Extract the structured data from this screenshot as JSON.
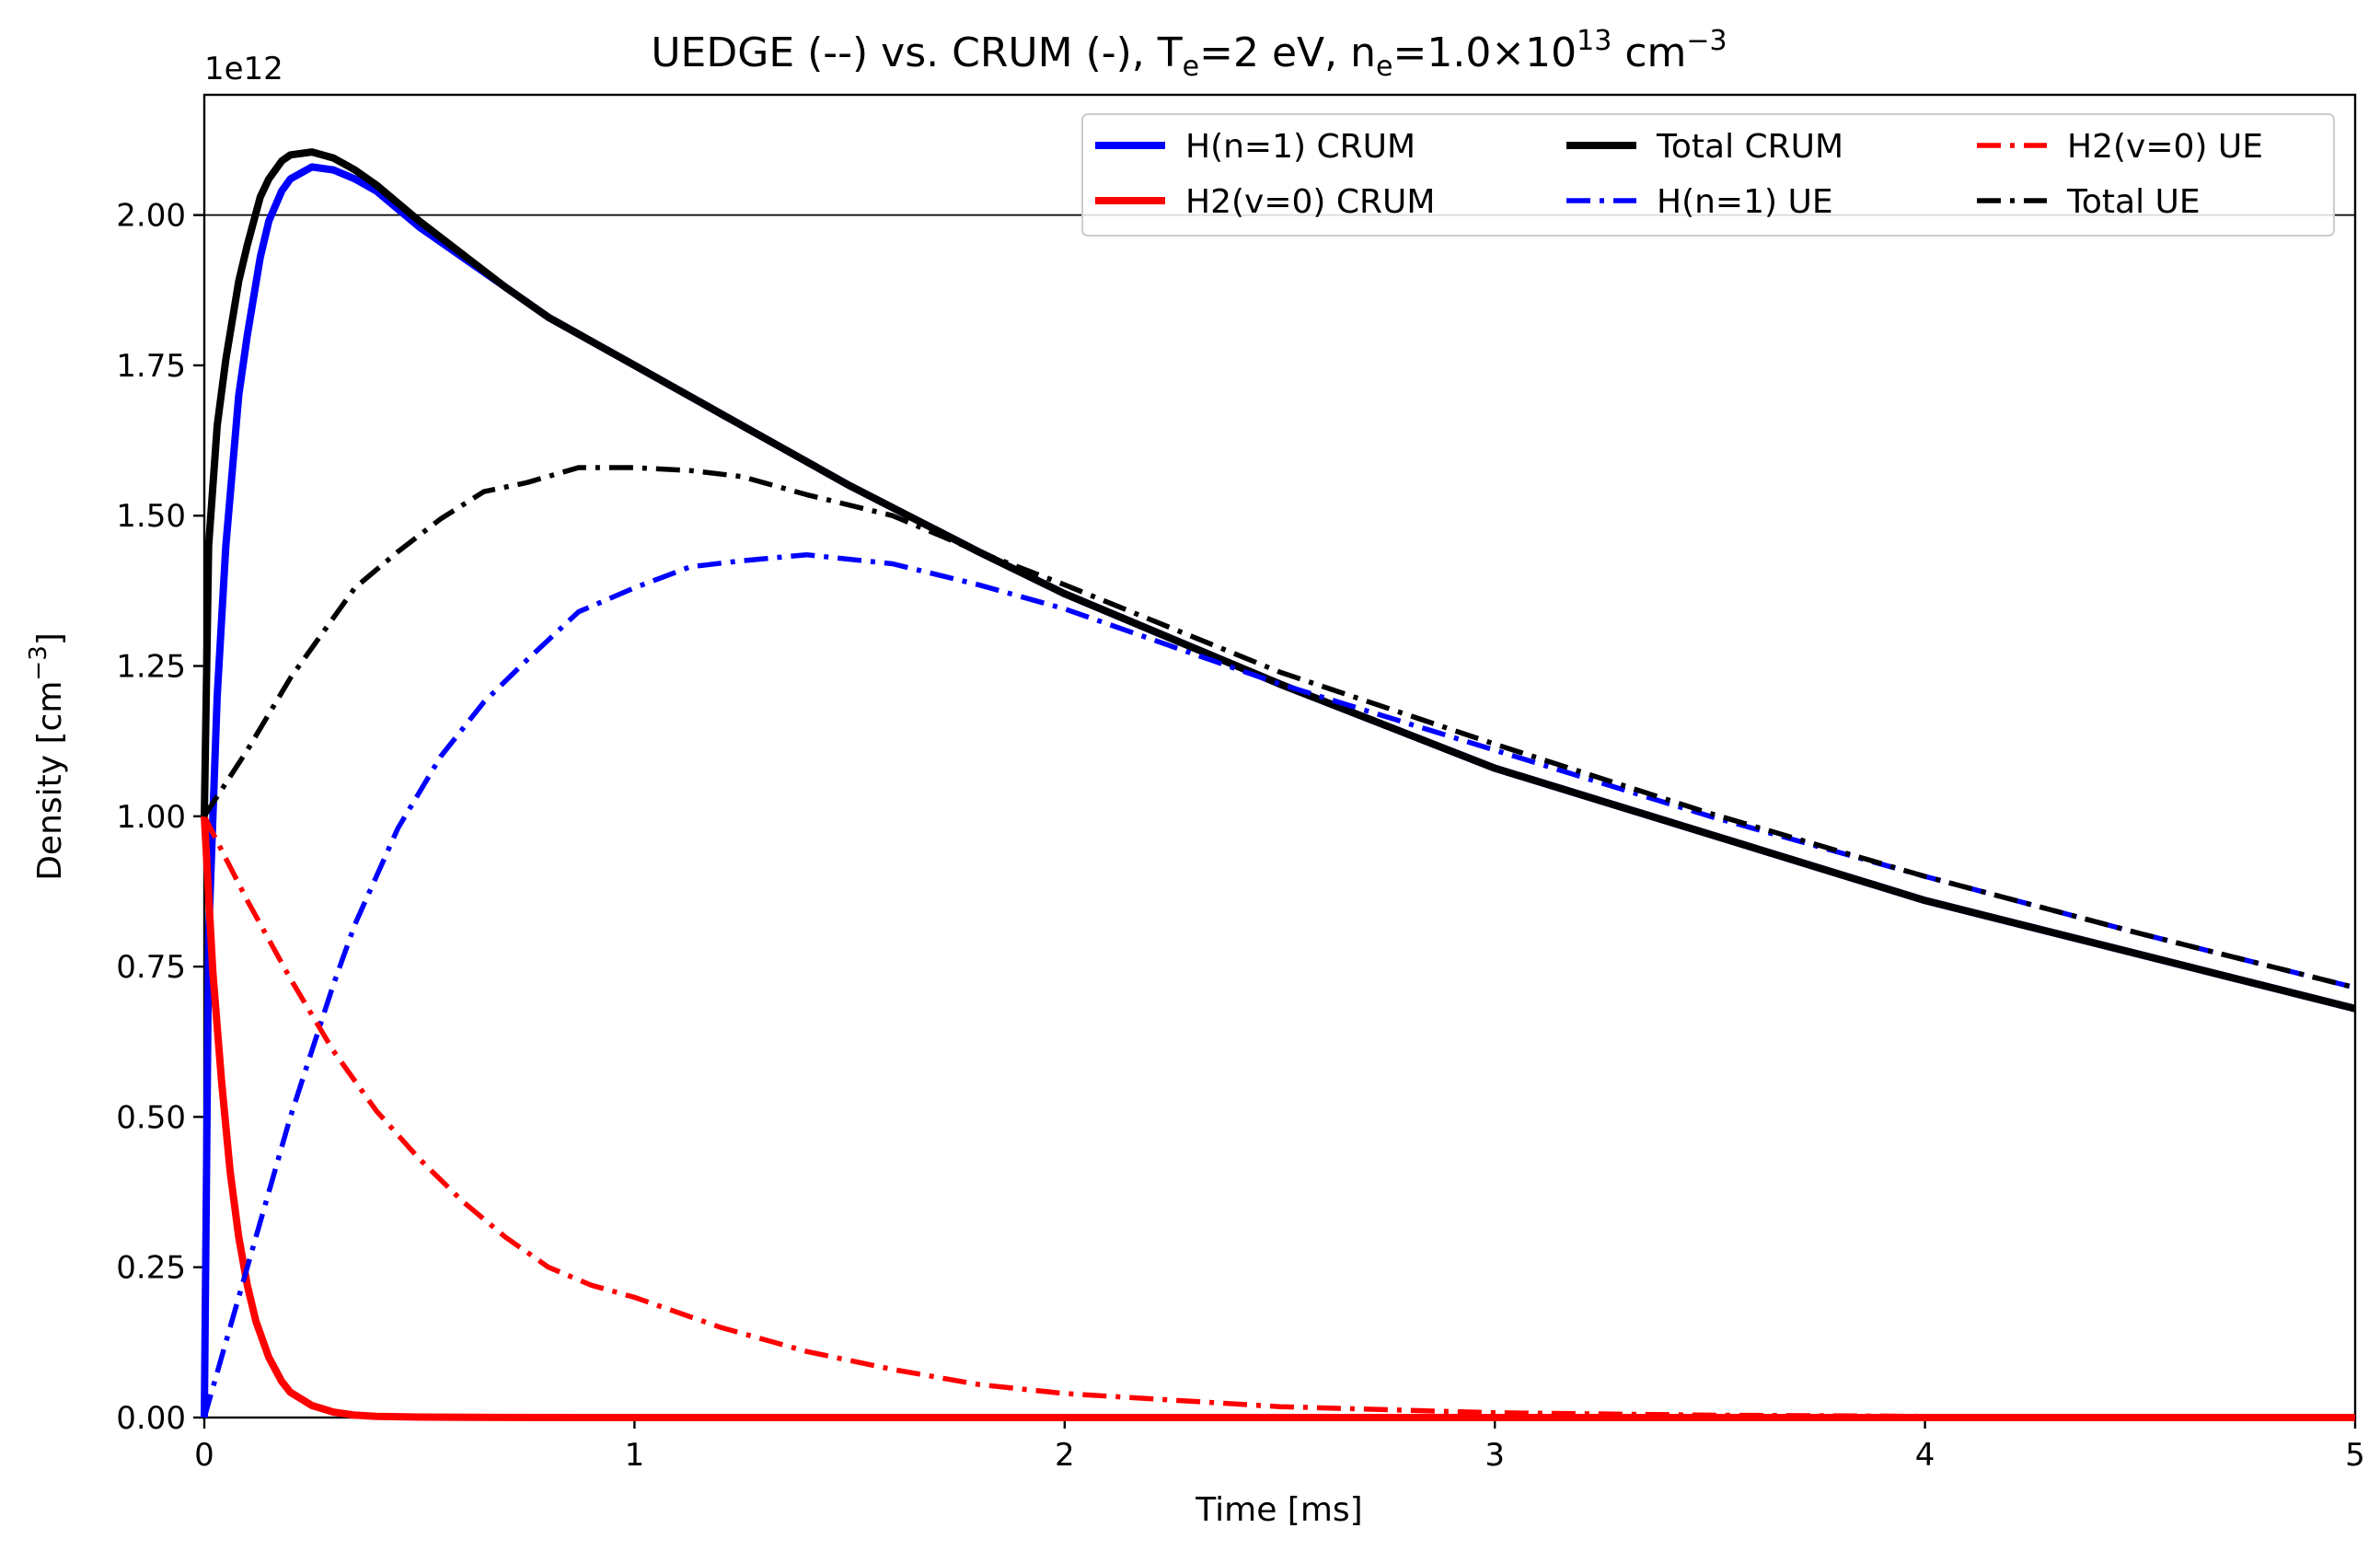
{
  "chart_data": {
    "type": "line",
    "title": {
      "prefix": "UEDGE (--) vs. CRUM (-),  T",
      "te_sub": "e",
      "mid": "=2 eV, n",
      "ne_sub": "e",
      "value": "=1.0×10",
      "exp": "13",
      "unit": " cm",
      "unit_exp": "−3"
    },
    "xlabel": "Time [ms]",
    "ylabel": {
      "text": "Density [cm",
      "exp": "−3",
      "close": "]"
    },
    "y_offset_text": "1e12",
    "xlim": [
      0,
      5
    ],
    "ylim": [
      0,
      2.2
    ],
    "x_ticks": [
      0,
      1,
      2,
      3,
      4,
      5
    ],
    "x_tick_labels": [
      "0",
      "1",
      "2",
      "3",
      "4",
      "5"
    ],
    "y_ticks": [
      0,
      0.25,
      0.5,
      0.75,
      1.0,
      1.25,
      1.5,
      1.75,
      2.0
    ],
    "y_tick_labels": [
      "0.00",
      "0.25",
      "0.50",
      "0.75",
      "1.00",
      "1.25",
      "1.50",
      "1.75",
      "2.00"
    ],
    "reference_line_y": 2.0,
    "grid": false,
    "legend": {
      "placement": "top-right",
      "columns": 3
    },
    "series": [
      {
        "name": "H(n=1) CRUM",
        "color": "#0000ff",
        "style": "solid",
        "x": [
          0,
          0.01,
          0.03,
          0.05,
          0.08,
          0.1,
          0.13,
          0.15,
          0.18,
          0.2,
          0.25,
          0.3,
          0.35,
          0.4,
          0.5,
          0.6,
          0.7,
          0.8,
          1.0,
          1.2,
          1.5,
          1.8,
          2.0,
          2.5,
          3.0,
          3.5,
          4.0,
          4.5,
          5.0
        ],
        "y": [
          0,
          0.8,
          1.2,
          1.45,
          1.7,
          1.8,
          1.93,
          1.99,
          2.04,
          2.06,
          2.08,
          2.075,
          2.06,
          2.04,
          1.98,
          1.93,
          1.88,
          1.83,
          1.75,
          1.67,
          1.55,
          1.44,
          1.37,
          1.22,
          1.08,
          0.97,
          0.86,
          0.77,
          0.68
        ]
      },
      {
        "name": "H2(v=0) CRUM",
        "color": "#ff0000",
        "style": "solid",
        "x": [
          0,
          0.02,
          0.04,
          0.06,
          0.08,
          0.1,
          0.12,
          0.15,
          0.18,
          0.2,
          0.25,
          0.3,
          0.35,
          0.4,
          0.5,
          0.7,
          1.0,
          2.0,
          3.0,
          4.0,
          5.0
        ],
        "y": [
          1.0,
          0.74,
          0.56,
          0.41,
          0.3,
          0.22,
          0.16,
          0.1,
          0.06,
          0.042,
          0.02,
          0.009,
          0.004,
          0.002,
          0.0007,
          0.0001,
          0,
          0,
          0,
          0,
          0
        ]
      },
      {
        "name": "Total CRUM",
        "color": "#000000",
        "style": "solid",
        "x": [
          0,
          0.01,
          0.03,
          0.05,
          0.08,
          0.1,
          0.13,
          0.15,
          0.18,
          0.2,
          0.25,
          0.3,
          0.35,
          0.4,
          0.5,
          0.6,
          0.7,
          0.8,
          1.0,
          1.2,
          1.5,
          1.8,
          2.0,
          2.5,
          3.0,
          3.5,
          4.0,
          4.5,
          5.0
        ],
        "y": [
          1.0,
          1.45,
          1.65,
          1.76,
          1.89,
          1.95,
          2.03,
          2.06,
          2.09,
          2.1,
          2.105,
          2.095,
          2.075,
          2.05,
          1.99,
          1.935,
          1.88,
          1.83,
          1.75,
          1.67,
          1.55,
          1.44,
          1.37,
          1.22,
          1.08,
          0.97,
          0.86,
          0.77,
          0.68
        ]
      },
      {
        "name": "H(n=1) UE",
        "color": "#0000ff",
        "style": "dashdot",
        "x": [
          0,
          0.1,
          0.2,
          0.3,
          0.35,
          0.45,
          0.55,
          0.65,
          0.75,
          0.87,
          1.0,
          1.13,
          1.25,
          1.4,
          1.6,
          1.8,
          2.0,
          2.5,
          3.0,
          3.5,
          4.0,
          4.5,
          5.0
        ],
        "y": [
          0,
          0.25,
          0.5,
          0.72,
          0.82,
          0.98,
          1.1,
          1.19,
          1.26,
          1.34,
          1.38,
          1.415,
          1.425,
          1.435,
          1.42,
          1.385,
          1.345,
          1.22,
          1.11,
          1.0,
          0.9,
          0.805,
          0.715
        ]
      },
      {
        "name": "H2(v=0) UE",
        "color": "#ff0000",
        "style": "dashdot",
        "x": [
          0,
          0.1,
          0.2,
          0.3,
          0.4,
          0.5,
          0.6,
          0.7,
          0.8,
          0.9,
          1.0,
          1.2,
          1.4,
          1.6,
          1.8,
          2.0,
          2.5,
          3.0,
          3.5,
          4.0,
          4.5,
          5.0
        ],
        "y": [
          1.0,
          0.86,
          0.73,
          0.61,
          0.51,
          0.43,
          0.36,
          0.3,
          0.25,
          0.22,
          0.2,
          0.15,
          0.11,
          0.08,
          0.055,
          0.04,
          0.018,
          0.008,
          0.004,
          0.002,
          0.001,
          0.0005
        ]
      },
      {
        "name": "Total UE",
        "color": "#000000",
        "style": "dashdot",
        "x": [
          0,
          0.1,
          0.2,
          0.3,
          0.35,
          0.45,
          0.55,
          0.65,
          0.75,
          0.87,
          1.0,
          1.13,
          1.25,
          1.4,
          1.6,
          1.8,
          2.0,
          2.5,
          3.0,
          3.5,
          4.0,
          4.5,
          5.0
        ],
        "y": [
          1.0,
          1.11,
          1.23,
          1.33,
          1.38,
          1.44,
          1.495,
          1.54,
          1.555,
          1.58,
          1.58,
          1.575,
          1.565,
          1.535,
          1.5,
          1.44,
          1.385,
          1.24,
          1.12,
          1.005,
          0.9,
          0.805,
          0.715
        ]
      }
    ]
  }
}
